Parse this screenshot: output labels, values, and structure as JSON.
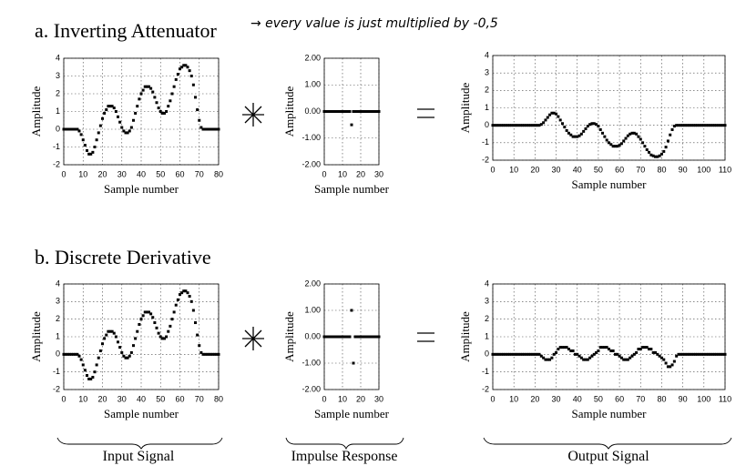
{
  "headings": [
    "a. Inverting Attenuator",
    "b. Discrete Derivative"
  ],
  "note": "→ every value is just multiplied by -0,5",
  "captions": [
    "Input Signal",
    "Impulse Response",
    "Output Signal"
  ],
  "chart_data": [
    {
      "type": "scatter",
      "xlabel": "Sample number",
      "ylabel": "Amplitude",
      "color": "#000000",
      "grid": true,
      "xlim": [
        0,
        80
      ],
      "xticks": [
        0,
        10,
        20,
        30,
        40,
        50,
        60,
        70,
        80
      ],
      "ylim": [
        -2,
        4
      ],
      "yticks": [
        -2,
        -1,
        0,
        1,
        2,
        3,
        4
      ],
      "x": [
        0,
        1,
        2,
        3,
        4,
        5,
        6,
        7,
        8,
        9,
        10,
        11,
        12,
        13,
        14,
        15,
        16,
        17,
        18,
        19,
        20,
        21,
        22,
        23,
        24,
        25,
        26,
        27,
        28,
        29,
        30,
        31,
        32,
        33,
        34,
        35,
        36,
        37,
        38,
        39,
        40,
        41,
        42,
        43,
        44,
        45,
        46,
        47,
        48,
        49,
        50,
        51,
        52,
        53,
        54,
        55,
        56,
        57,
        58,
        59,
        60,
        61,
        62,
        63,
        64,
        65,
        66,
        67,
        68,
        69,
        70,
        71,
        72,
        73,
        74,
        75,
        76,
        77,
        78,
        79,
        80
      ],
      "values": [
        0,
        0,
        0,
        0,
        0,
        0,
        0,
        0,
        -0.1,
        -0.3,
        -0.6,
        -0.9,
        -1.2,
        -1.4,
        -1.4,
        -1.3,
        -1,
        -0.6,
        -0.2,
        0.2,
        0.6,
        0.9,
        1.1,
        1.3,
        1.3,
        1.3,
        1.2,
        1,
        0.7,
        0.4,
        0.1,
        -0.1,
        -0.2,
        -0.2,
        -0.1,
        0.1,
        0.5,
        0.9,
        1.3,
        1.7,
        2,
        2.2,
        2.4,
        2.4,
        2.4,
        2.3,
        2.1,
        1.8,
        1.5,
        1.2,
        1,
        0.9,
        0.9,
        1,
        1.3,
        1.6,
        2,
        2.4,
        2.8,
        3.1,
        3.4,
        3.5,
        3.6,
        3.6,
        3.5,
        3.3,
        3,
        2.5,
        1.8,
        1.1,
        0.5,
        0.1,
        0,
        0,
        0,
        0,
        0,
        0,
        0,
        0,
        0
      ]
    },
    {
      "type": "scatter",
      "xlabel": "Sample number",
      "ylabel": "Amplitude",
      "color": "#000000",
      "grid": true,
      "xlim": [
        0,
        30
      ],
      "xticks": [
        0,
        10,
        20,
        30
      ],
      "ylim": [
        -2,
        2
      ],
      "yticks": [
        {
          "value": -2,
          "label": "-2.00"
        },
        {
          "value": -1,
          "label": "-1.00"
        },
        {
          "value": 0,
          "label": "0.00"
        },
        {
          "value": 1,
          "label": "1.00"
        },
        {
          "value": 2,
          "label": "2.00"
        }
      ],
      "x": [
        0,
        1,
        2,
        3,
        4,
        5,
        6,
        7,
        8,
        9,
        10,
        11,
        12,
        13,
        14,
        15,
        16,
        17,
        18,
        19,
        20,
        21,
        22,
        23,
        24,
        25,
        26,
        27,
        28,
        29,
        30
      ],
      "values": [
        0,
        0,
        0,
        0,
        0,
        0,
        0,
        0,
        0,
        0,
        0,
        0,
        0,
        0,
        0,
        -0.5,
        0,
        0,
        0,
        0,
        0,
        0,
        0,
        0,
        0,
        0,
        0,
        0,
        0,
        0,
        0
      ]
    },
    {
      "type": "scatter",
      "xlabel": "Sample number",
      "ylabel": "Amplitude",
      "color": "#000000",
      "grid": true,
      "xlim": [
        0,
        110
      ],
      "xticks": [
        0,
        10,
        20,
        30,
        40,
        50,
        60,
        70,
        80,
        90,
        100,
        110
      ],
      "ylim": [
        -2,
        4
      ],
      "yticks": [
        -2,
        -1,
        0,
        1,
        2,
        3,
        4
      ],
      "x": [
        0,
        1,
        2,
        3,
        4,
        5,
        6,
        7,
        8,
        9,
        10,
        11,
        12,
        13,
        14,
        15,
        16,
        17,
        18,
        19,
        20,
        21,
        22,
        23,
        24,
        25,
        26,
        27,
        28,
        29,
        30,
        31,
        32,
        33,
        34,
        35,
        36,
        37,
        38,
        39,
        40,
        41,
        42,
        43,
        44,
        45,
        46,
        47,
        48,
        49,
        50,
        51,
        52,
        53,
        54,
        55,
        56,
        57,
        58,
        59,
        60,
        61,
        62,
        63,
        64,
        65,
        66,
        67,
        68,
        69,
        70,
        71,
        72,
        73,
        74,
        75,
        76,
        77,
        78,
        79,
        80,
        81,
        82,
        83,
        84,
        85,
        86,
        87,
        88,
        89,
        90,
        91,
        92,
        93,
        94,
        95,
        96,
        97,
        98,
        99,
        100,
        101,
        102,
        103,
        104,
        105,
        106,
        107,
        108,
        109,
        110
      ],
      "values": [
        0,
        0,
        0,
        0,
        0,
        0,
        0,
        0,
        0,
        0,
        0,
        0,
        0,
        0,
        0,
        0,
        0,
        0,
        0,
        0,
        0,
        0,
        0,
        0.05,
        0.15,
        0.3,
        0.45,
        0.6,
        0.7,
        0.7,
        0.65,
        0.5,
        0.3,
        0.1,
        -0.1,
        -0.3,
        -0.45,
        -0.55,
        -0.65,
        -0.65,
        -0.65,
        -0.6,
        -0.5,
        -0.35,
        -0.2,
        -0.05,
        0.05,
        0.1,
        0.1,
        0.05,
        -0.05,
        -0.25,
        -0.45,
        -0.65,
        -0.85,
        -1,
        -1.1,
        -1.2,
        -1.2,
        -1.2,
        -1.15,
        -1.05,
        -0.9,
        -0.75,
        -0.6,
        -0.5,
        -0.45,
        -0.45,
        -0.5,
        -0.65,
        -0.8,
        -1,
        -1.2,
        -1.4,
        -1.55,
        -1.7,
        -1.75,
        -1.8,
        -1.8,
        -1.75,
        -1.65,
        -1.5,
        -1.25,
        -0.9,
        -0.55,
        -0.25,
        -0.05,
        0,
        0,
        0,
        0,
        0,
        0,
        0,
        0,
        0,
        0,
        0,
        0,
        0,
        0,
        0,
        0,
        0,
        0,
        0,
        0,
        0,
        0,
        0,
        0
      ]
    },
    {
      "type": "scatter",
      "xlabel": "Sample number",
      "ylabel": "Amplitude",
      "color": "#000000",
      "grid": true,
      "xlim": [
        0,
        80
      ],
      "xticks": [
        0,
        10,
        20,
        30,
        40,
        50,
        60,
        70,
        80
      ],
      "ylim": [
        -2,
        4
      ],
      "yticks": [
        -2,
        -1,
        0,
        1,
        2,
        3,
        4
      ],
      "x": [
        0,
        1,
        2,
        3,
        4,
        5,
        6,
        7,
        8,
        9,
        10,
        11,
        12,
        13,
        14,
        15,
        16,
        17,
        18,
        19,
        20,
        21,
        22,
        23,
        24,
        25,
        26,
        27,
        28,
        29,
        30,
        31,
        32,
        33,
        34,
        35,
        36,
        37,
        38,
        39,
        40,
        41,
        42,
        43,
        44,
        45,
        46,
        47,
        48,
        49,
        50,
        51,
        52,
        53,
        54,
        55,
        56,
        57,
        58,
        59,
        60,
        61,
        62,
        63,
        64,
        65,
        66,
        67,
        68,
        69,
        70,
        71,
        72,
        73,
        74,
        75,
        76,
        77,
        78,
        79,
        80
      ],
      "values": [
        0,
        0,
        0,
        0,
        0,
        0,
        0,
        0,
        -0.1,
        -0.3,
        -0.6,
        -0.9,
        -1.2,
        -1.4,
        -1.4,
        -1.3,
        -1,
        -0.6,
        -0.2,
        0.2,
        0.6,
        0.9,
        1.1,
        1.3,
        1.3,
        1.3,
        1.2,
        1,
        0.7,
        0.4,
        0.1,
        -0.1,
        -0.2,
        -0.2,
        -0.1,
        0.1,
        0.5,
        0.9,
        1.3,
        1.7,
        2,
        2.2,
        2.4,
        2.4,
        2.4,
        2.3,
        2.1,
        1.8,
        1.5,
        1.2,
        1,
        0.9,
        0.9,
        1,
        1.3,
        1.6,
        2,
        2.4,
        2.8,
        3.1,
        3.4,
        3.5,
        3.6,
        3.6,
        3.5,
        3.3,
        3,
        2.5,
        1.8,
        1.1,
        0.5,
        0.1,
        0,
        0,
        0,
        0,
        0,
        0,
        0,
        0,
        0
      ]
    },
    {
      "type": "scatter",
      "xlabel": "Sample number",
      "ylabel": "Amplitude",
      "color": "#000000",
      "grid": true,
      "xlim": [
        0,
        30
      ],
      "xticks": [
        0,
        10,
        20,
        30
      ],
      "ylim": [
        -2,
        2
      ],
      "yticks": [
        {
          "value": -2,
          "label": "-2.00"
        },
        {
          "value": -1,
          "label": "-1.00"
        },
        {
          "value": 0,
          "label": "0.00"
        },
        {
          "value": 1,
          "label": "1.00"
        },
        {
          "value": 2,
          "label": "2.00"
        }
      ],
      "x": [
        0,
        1,
        2,
        3,
        4,
        5,
        6,
        7,
        8,
        9,
        10,
        11,
        12,
        13,
        14,
        15,
        16,
        17,
        18,
        19,
        20,
        21,
        22,
        23,
        24,
        25,
        26,
        27,
        28,
        29,
        30
      ],
      "values": [
        0,
        0,
        0,
        0,
        0,
        0,
        0,
        0,
        0,
        0,
        0,
        0,
        0,
        0,
        0,
        1,
        -1,
        0,
        0,
        0,
        0,
        0,
        0,
        0,
        0,
        0,
        0,
        0,
        0,
        0,
        0
      ]
    },
    {
      "type": "scatter",
      "xlabel": "Sample number",
      "ylabel": "Amplitude",
      "color": "#000000",
      "grid": true,
      "xlim": [
        0,
        110
      ],
      "xticks": [
        0,
        10,
        20,
        30,
        40,
        50,
        60,
        70,
        80,
        90,
        100,
        110
      ],
      "ylim": [
        -2,
        4
      ],
      "yticks": [
        -2,
        -1,
        0,
        1,
        2,
        3,
        4
      ],
      "x": [
        0,
        1,
        2,
        3,
        4,
        5,
        6,
        7,
        8,
        9,
        10,
        11,
        12,
        13,
        14,
        15,
        16,
        17,
        18,
        19,
        20,
        21,
        22,
        23,
        24,
        25,
        26,
        27,
        28,
        29,
        30,
        31,
        32,
        33,
        34,
        35,
        36,
        37,
        38,
        39,
        40,
        41,
        42,
        43,
        44,
        45,
        46,
        47,
        48,
        49,
        50,
        51,
        52,
        53,
        54,
        55,
        56,
        57,
        58,
        59,
        60,
        61,
        62,
        63,
        64,
        65,
        66,
        67,
        68,
        69,
        70,
        71,
        72,
        73,
        74,
        75,
        76,
        77,
        78,
        79,
        80,
        81,
        82,
        83,
        84,
        85,
        86,
        87,
        88,
        89,
        90,
        91,
        92,
        93,
        94,
        95,
        96,
        97,
        98,
        99,
        100,
        101,
        102,
        103,
        104,
        105,
        106,
        107,
        108,
        109,
        110
      ],
      "values": [
        0,
        0,
        0,
        0,
        0,
        0,
        0,
        0,
        0,
        0,
        0,
        0,
        0,
        0,
        0,
        0,
        0,
        0,
        0,
        0,
        0,
        0,
        0,
        -0.1,
        -0.2,
        -0.3,
        -0.3,
        -0.3,
        -0.2,
        0,
        0.1,
        0.3,
        0.4,
        0.4,
        0.4,
        0.4,
        0.3,
        0.2,
        0.2,
        0,
        0,
        -0.1,
        -0.2,
        -0.3,
        -0.3,
        -0.3,
        -0.2,
        -0.1,
        0,
        0.1,
        0.2,
        0.4,
        0.4,
        0.4,
        0.4,
        0.3,
        0.2,
        0.2,
        0,
        0,
        -0.1,
        -0.2,
        -0.3,
        -0.3,
        -0.3,
        -0.2,
        -0.1,
        0,
        0.1,
        0.3,
        0.3,
        0.4,
        0.4,
        0.4,
        0.3,
        0.3,
        0.1,
        0.1,
        0,
        -0.1,
        -0.2,
        -0.3,
        -0.5,
        -0.7,
        -0.7,
        -0.6,
        -0.4,
        -0.1,
        0,
        0,
        0,
        0,
        0,
        0,
        0,
        0,
        0,
        0,
        0,
        0,
        0,
        0,
        0,
        0,
        0,
        0,
        0,
        0,
        0,
        0,
        0
      ]
    }
  ]
}
